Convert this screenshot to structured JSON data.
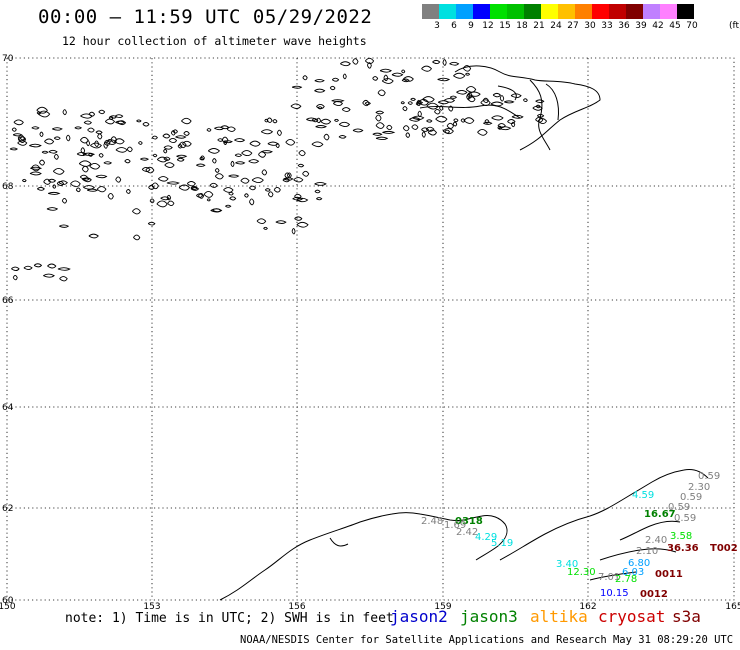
{
  "header": {
    "title": "00:00 – 11:59 UTC 05/29/2022",
    "subtitle": "12 hour collection of altimeter wave heights"
  },
  "colorbar": {
    "labels": [
      "3",
      "6",
      "9",
      "12",
      "15",
      "18",
      "21",
      "24",
      "27",
      "30",
      "33",
      "36",
      "39",
      "42",
      "45",
      "70"
    ],
    "units": "(ft)",
    "colors": [
      "#808080",
      "#00e0e0",
      "#00a0ff",
      "#0000ff",
      "#00e000",
      "#00c000",
      "#008000",
      "#ffff00",
      "#ffc000",
      "#ff8000",
      "#ff0000",
      "#c00000",
      "#800000",
      "#c080ff",
      "#ff80ff",
      "#000000"
    ]
  },
  "axes": {
    "lon_labels": [
      "150",
      "153",
      "156",
      "159",
      "162",
      "165"
    ],
    "lat_labels": [
      "70",
      "68",
      "66",
      "64",
      "62",
      "60"
    ]
  },
  "points": [
    {
      "text": "0.59",
      "color": "#808080"
    },
    {
      "text": "2.30",
      "color": "#808080"
    },
    {
      "text": "4.59",
      "color": "#00e0e0"
    },
    {
      "text": "0.59",
      "color": "#808080"
    },
    {
      "text": "16.67",
      "color": "#008000"
    },
    {
      "text": "0.59",
      "color": "#808080"
    },
    {
      "text": "0.59",
      "color": "#808080"
    },
    {
      "text": "2.40",
      "color": "#808080"
    },
    {
      "text": "3.58",
      "color": "#00e000"
    },
    {
      "text": "2.10",
      "color": "#808080"
    },
    {
      "text": "36.36",
      "color": "#800000"
    },
    {
      "text": "T002",
      "color": "#800000"
    },
    {
      "text": "6.80",
      "color": "#00a0ff"
    },
    {
      "text": "2.48",
      "color": "#808080"
    },
    {
      "text": "0318",
      "color": "#008000"
    },
    {
      "text": "1.69",
      "color": "#808080"
    },
    {
      "text": "2.42",
      "color": "#808080"
    },
    {
      "text": "4.29",
      "color": "#00e0e0"
    },
    {
      "text": "5.19",
      "color": "#00e0e0"
    },
    {
      "text": "3.40",
      "color": "#00e0e0"
    },
    {
      "text": "12.30",
      "color": "#00e000"
    },
    {
      "text": "7.01",
      "color": "#808080"
    },
    {
      "text": "2.78",
      "color": "#00e000"
    },
    {
      "text": "6.03",
      "color": "#00a0ff"
    },
    {
      "text": "0011",
      "color": "#800000"
    },
    {
      "text": "10.15",
      "color": "#0000ff"
    },
    {
      "text": "0012",
      "color": "#800000"
    }
  ],
  "note": "note: 1) Time is in UTC; 2) SWH is in feet",
  "satellites": [
    {
      "name": "jason2",
      "color": "#0000cc"
    },
    {
      "name": "jason3",
      "color": "#008000"
    },
    {
      "name": "altika",
      "color": "#ff9900"
    },
    {
      "name": "cryosat",
      "color": "#cc0000"
    },
    {
      "name": "s3a",
      "color": "#800000"
    }
  ],
  "credit": "NOAA/NESDIS Center for Satellite Applications and Research   May 31 08:29:20 UTC 2022"
}
